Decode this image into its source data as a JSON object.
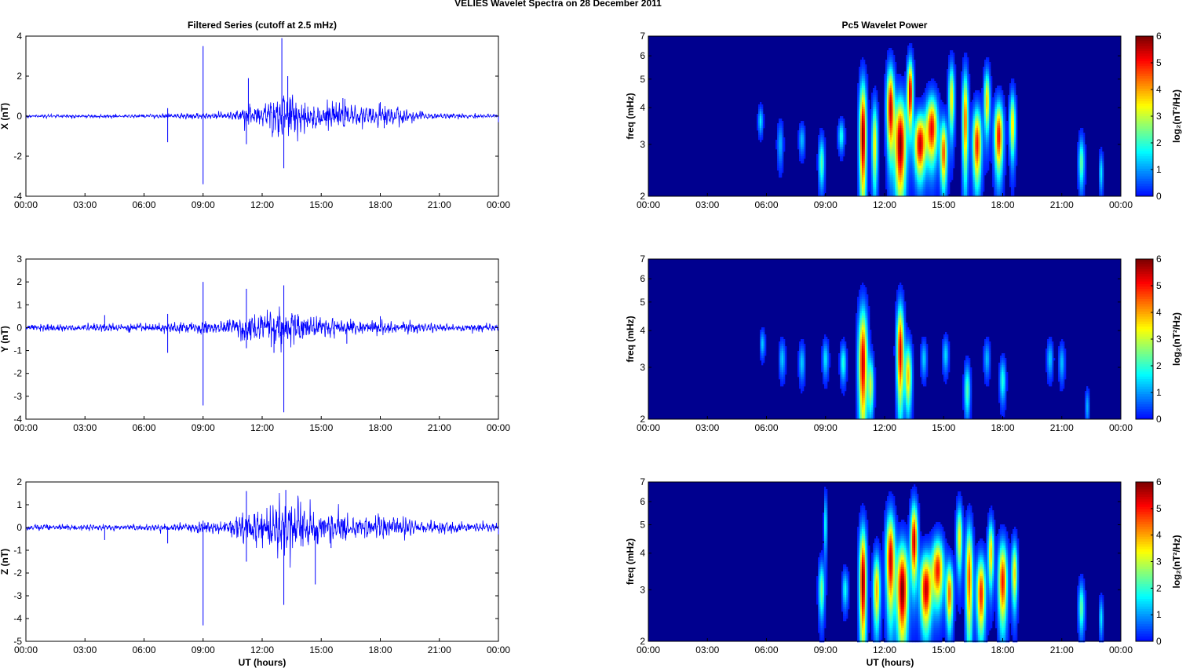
{
  "figure_title": "VELIES Wavelet Spectra on 28 December  2011",
  "left_title": "Filtered Series (cutoff at 2.5 mHz)",
  "right_title": "Pc5 Wavelet Power",
  "x_title": "UT (hours)",
  "colors": {
    "trace": "#0000ff",
    "map_background": "#00008f"
  },
  "chart_data": [
    {
      "type": "line",
      "ylabel": "X (nT)",
      "ylim": [
        -4,
        4
      ],
      "yticks": [
        "4",
        "2",
        "0",
        "-2",
        "-4"
      ],
      "xlim": [
        0,
        24
      ],
      "xticks": [
        "00:00",
        "03:00",
        "06:00",
        "09:00",
        "12:00",
        "15:00",
        "18:00",
        "21:00",
        "00:00"
      ],
      "noise_amp": [
        [
          0,
          0.05
        ],
        [
          5,
          0.06
        ],
        [
          7,
          0.08
        ],
        [
          9,
          0.1
        ],
        [
          10.5,
          0.15
        ],
        [
          11,
          0.35
        ],
        [
          12,
          0.45
        ],
        [
          13,
          0.9
        ],
        [
          14,
          0.6
        ],
        [
          15,
          0.45
        ],
        [
          16,
          0.4
        ],
        [
          17,
          0.3
        ],
        [
          18,
          0.35
        ],
        [
          19,
          0.3
        ],
        [
          20,
          0.15
        ],
        [
          21,
          0.1
        ],
        [
          24,
          0.06
        ]
      ],
      "spikes": [
        [
          7.2,
          -1.3
        ],
        [
          7.2,
          0.4
        ],
        [
          9.0,
          3.5
        ],
        [
          9.0,
          -3.4
        ],
        [
          11.2,
          -1.4
        ],
        [
          11.3,
          1.9
        ],
        [
          13.0,
          3.9
        ],
        [
          13.1,
          -2.6
        ],
        [
          13.3,
          2.0
        ],
        [
          16.1,
          0.9
        ],
        [
          18.0,
          0.7
        ],
        [
          18.2,
          -0.6
        ],
        [
          24,
          -0.3
        ]
      ]
    },
    {
      "type": "line",
      "ylabel": "Y (nT)",
      "ylim": [
        -4,
        3
      ],
      "yticks": [
        "3",
        "2",
        "1",
        "0",
        "-1",
        "-2",
        "-3",
        "-4"
      ],
      "xlim": [
        0,
        24
      ],
      "xticks": [
        "00:00",
        "03:00",
        "06:00",
        "09:00",
        "12:00",
        "15:00",
        "18:00",
        "21:00",
        "00:00"
      ],
      "noise_amp": [
        [
          0,
          0.1
        ],
        [
          6,
          0.12
        ],
        [
          8,
          0.15
        ],
        [
          10,
          0.2
        ],
        [
          11,
          0.35
        ],
        [
          12,
          0.35
        ],
        [
          13,
          0.75
        ],
        [
          14,
          0.35
        ],
        [
          16,
          0.25
        ],
        [
          18,
          0.22
        ],
        [
          20,
          0.15
        ],
        [
          24,
          0.1
        ]
      ],
      "spikes": [
        [
          4.0,
          0.55
        ],
        [
          7.2,
          -1.1
        ],
        [
          7.2,
          0.6
        ],
        [
          9.0,
          2.0
        ],
        [
          9.0,
          -3.4
        ],
        [
          11.2,
          1.7
        ],
        [
          11.2,
          -0.9
        ],
        [
          13.1,
          1.85
        ],
        [
          13.1,
          -3.7
        ],
        [
          12.6,
          -1.1
        ],
        [
          16.3,
          -0.7
        ],
        [
          18.0,
          0.5
        ]
      ]
    },
    {
      "type": "line",
      "ylabel": "Z (nT)",
      "ylim": [
        -5,
        2
      ],
      "yticks": [
        "2",
        "1",
        "0",
        "-1",
        "-2",
        "-3",
        "-4",
        "-5"
      ],
      "xlim": [
        0,
        24
      ],
      "xticks": [
        "00:00",
        "03:00",
        "06:00",
        "09:00",
        "12:00",
        "15:00",
        "18:00",
        "21:00",
        "00:00"
      ],
      "noise_amp": [
        [
          0,
          0.08
        ],
        [
          6,
          0.1
        ],
        [
          8,
          0.12
        ],
        [
          10,
          0.2
        ],
        [
          11,
          0.45
        ],
        [
          12,
          0.55
        ],
        [
          13,
          0.95
        ],
        [
          14,
          0.7
        ],
        [
          15,
          0.45
        ],
        [
          16,
          0.4
        ],
        [
          17,
          0.3
        ],
        [
          18,
          0.35
        ],
        [
          19,
          0.3
        ],
        [
          20,
          0.2
        ],
        [
          24,
          0.12
        ]
      ],
      "spikes": [
        [
          4.0,
          -0.55
        ],
        [
          7.2,
          -0.7
        ],
        [
          9.0,
          -4.3
        ],
        [
          9.0,
          0.3
        ],
        [
          11.2,
          1.6
        ],
        [
          11.2,
          -1.5
        ],
        [
          13.1,
          -3.4
        ],
        [
          13.2,
          1.65
        ],
        [
          14.7,
          -2.5
        ],
        [
          15.5,
          -0.9
        ],
        [
          24,
          -0.3
        ]
      ]
    },
    {
      "type": "heatmap",
      "ylabel": "freq (mHz)",
      "ylim": [
        2,
        7
      ],
      "yscale": "log",
      "yticks": [
        "7",
        "6",
        "5",
        "4",
        "3",
        "2"
      ],
      "xlim": [
        0,
        24
      ],
      "xticks": [
        "00:00",
        "03:00",
        "06:00",
        "09:00",
        "12:00",
        "15:00",
        "18:00",
        "21:00",
        "00:00"
      ],
      "colorbar": {
        "label": "log₂(nT²/Hz)",
        "range": [
          0,
          6
        ],
        "ticks": [
          "6",
          "5",
          "4",
          "3",
          "2",
          "1",
          "0"
        ]
      },
      "blobs": [
        [
          5.7,
          3.6,
          0.08,
          0.25,
          1.6
        ],
        [
          6.7,
          3.0,
          0.1,
          0.35,
          1.2
        ],
        [
          7.8,
          3.1,
          0.1,
          0.25,
          1.3
        ],
        [
          8.8,
          2.6,
          0.1,
          0.35,
          2.3
        ],
        [
          9.8,
          3.2,
          0.1,
          0.25,
          1.9
        ],
        [
          10.9,
          3.2,
          0.12,
          1.0,
          6.0
        ],
        [
          11.5,
          3.0,
          0.1,
          0.7,
          3.5
        ],
        [
          12.3,
          4.0,
          0.13,
          0.9,
          5.5
        ],
        [
          12.8,
          3.0,
          0.2,
          0.8,
          6.0
        ],
        [
          13.3,
          4.5,
          0.1,
          0.8,
          5.6
        ],
        [
          13.8,
          3.0,
          0.2,
          0.5,
          5.5
        ],
        [
          14.4,
          3.4,
          0.2,
          0.6,
          5.2
        ],
        [
          15.0,
          2.8,
          0.12,
          0.5,
          4.6
        ],
        [
          15.4,
          4.3,
          0.1,
          0.8,
          3.5
        ],
        [
          16.1,
          3.6,
          0.1,
          1.0,
          4.5
        ],
        [
          16.7,
          3.0,
          0.15,
          0.6,
          5.0
        ],
        [
          17.2,
          4.2,
          0.1,
          0.7,
          3.8
        ],
        [
          17.8,
          3.2,
          0.15,
          0.6,
          5.1
        ],
        [
          18.5,
          3.5,
          0.1,
          0.6,
          3.7
        ],
        [
          22.0,
          2.6,
          0.1,
          0.35,
          2.4
        ],
        [
          23.0,
          2.4,
          0.07,
          0.25,
          1.6
        ]
      ]
    },
    {
      "type": "heatmap",
      "ylabel": "freq (mHz)",
      "ylim": [
        2,
        7
      ],
      "yscale": "log",
      "yticks": [
        "7",
        "6",
        "5",
        "4",
        "3",
        "2"
      ],
      "xlim": [
        0,
        24
      ],
      "xticks": [
        "00:00",
        "03:00",
        "06:00",
        "09:00",
        "12:00",
        "15:00",
        "18:00",
        "21:00",
        "00:00"
      ],
      "colorbar": {
        "label": "log₂(nT²/Hz)",
        "range": [
          0,
          6
        ],
        "ticks": [
          "6",
          "5",
          "4",
          "3",
          "2",
          "1",
          "0"
        ]
      },
      "blobs": [
        [
          5.8,
          3.6,
          0.08,
          0.25,
          1.4
        ],
        [
          6.8,
          3.2,
          0.1,
          0.3,
          1.4
        ],
        [
          7.8,
          3.1,
          0.1,
          0.3,
          1.4
        ],
        [
          9.0,
          3.2,
          0.1,
          0.3,
          1.6
        ],
        [
          9.9,
          3.1,
          0.1,
          0.3,
          2.0
        ],
        [
          10.9,
          3.1,
          0.15,
          1.0,
          5.5
        ],
        [
          11.3,
          2.6,
          0.1,
          0.4,
          3.0
        ],
        [
          12.8,
          3.4,
          0.12,
          0.9,
          5.5
        ],
        [
          13.2,
          2.8,
          0.12,
          0.5,
          3.8
        ],
        [
          14.0,
          3.2,
          0.1,
          0.3,
          1.4
        ],
        [
          15.1,
          3.3,
          0.1,
          0.3,
          1.5
        ],
        [
          16.2,
          2.5,
          0.1,
          0.35,
          2.3
        ],
        [
          17.2,
          3.2,
          0.1,
          0.3,
          1.3
        ],
        [
          18.0,
          2.7,
          0.1,
          0.3,
          2.0
        ],
        [
          20.4,
          3.2,
          0.1,
          0.3,
          1.4
        ],
        [
          21.0,
          3.1,
          0.1,
          0.3,
          1.3
        ],
        [
          22.3,
          2.2,
          0.07,
          0.2,
          1.2
        ]
      ]
    },
    {
      "type": "heatmap",
      "ylabel": "freq (mHz)",
      "ylim": [
        2,
        7
      ],
      "yscale": "log",
      "yticks": [
        "7",
        "6",
        "5",
        "4",
        "3",
        "2"
      ],
      "xlim": [
        0,
        24
      ],
      "xticks": [
        "00:00",
        "03:00",
        "06:00",
        "09:00",
        "12:00",
        "15:00",
        "18:00",
        "21:00",
        "00:00"
      ],
      "colorbar": {
        "label": "log₂(nT²/Hz)",
        "range": [
          0,
          6
        ],
        "ticks": [
          "6",
          "5",
          "4",
          "3",
          "2",
          "1",
          "0"
        ]
      },
      "blobs": [
        [
          8.8,
          3.0,
          0.1,
          0.45,
          2.6
        ],
        [
          9.0,
          5.0,
          0.05,
          0.8,
          2.0
        ],
        [
          10.0,
          3.0,
          0.1,
          0.3,
          1.8
        ],
        [
          10.9,
          3.2,
          0.12,
          1.0,
          6.0
        ],
        [
          11.6,
          3.0,
          0.12,
          0.6,
          4.0
        ],
        [
          12.3,
          3.8,
          0.15,
          1.0,
          5.5
        ],
        [
          12.9,
          3.0,
          0.2,
          0.8,
          6.0
        ],
        [
          13.5,
          4.4,
          0.12,
          0.9,
          5.6
        ],
        [
          14.1,
          3.0,
          0.2,
          0.6,
          5.5
        ],
        [
          14.7,
          3.5,
          0.2,
          0.6,
          5.0
        ],
        [
          15.3,
          2.9,
          0.12,
          0.5,
          4.5
        ],
        [
          15.8,
          4.5,
          0.1,
          0.8,
          3.5
        ],
        [
          16.3,
          3.3,
          0.12,
          1.0,
          4.7
        ],
        [
          16.9,
          2.9,
          0.15,
          0.6,
          5.0
        ],
        [
          17.4,
          4.0,
          0.1,
          0.7,
          3.8
        ],
        [
          18.0,
          3.2,
          0.15,
          0.7,
          5.1
        ],
        [
          18.6,
          3.4,
          0.1,
          0.6,
          3.7
        ],
        [
          22.0,
          2.6,
          0.1,
          0.35,
          2.4
        ],
        [
          23.0,
          2.4,
          0.07,
          0.25,
          1.6
        ]
      ]
    }
  ]
}
